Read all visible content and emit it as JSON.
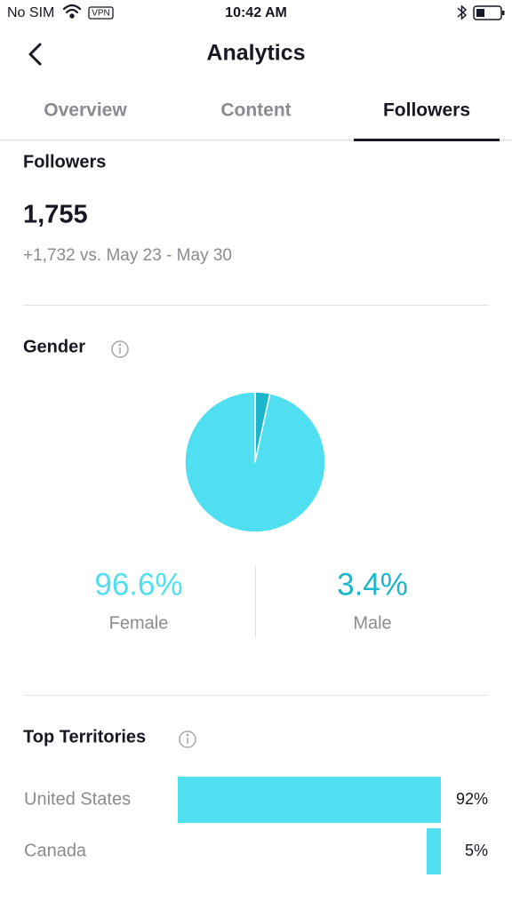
{
  "status_bar": {
    "carrier": "No SIM",
    "vpn": "VPN",
    "time": "10:42 AM"
  },
  "header": {
    "title": "Analytics"
  },
  "tabs": [
    "Overview",
    "Content",
    "Followers"
  ],
  "followers": {
    "title": "Followers",
    "count": "1,755",
    "change": "+1,732 vs. May 23 - May 30"
  },
  "gender": {
    "title": "Gender",
    "type": "pie",
    "categories": [
      "Female",
      "Male"
    ],
    "values": [
      96.6,
      3.4
    ],
    "value_labels": [
      "96.6%",
      "3.4%"
    ],
    "colors": [
      "#4fdff0",
      "#1bb6cc"
    ]
  },
  "territories": {
    "title": "Top Territories",
    "type": "bar",
    "categories": [
      "United States",
      "Canada"
    ],
    "values": [
      92,
      5
    ],
    "value_labels": [
      "92%",
      "5%"
    ],
    "color": "#4fdff0"
  }
}
